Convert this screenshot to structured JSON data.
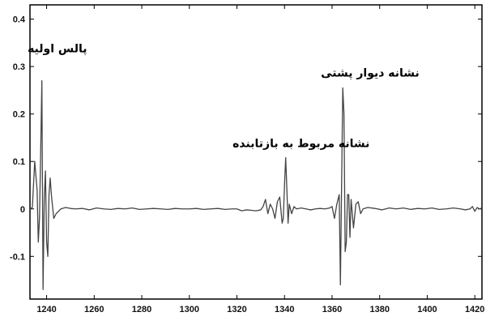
{
  "chart_data": {
    "type": "line",
    "title": "",
    "xlabel": "",
    "ylabel": "",
    "xlim": [
      1233,
      1423
    ],
    "ylim": [
      -0.19,
      0.43
    ],
    "x_ticks": [
      1240,
      1260,
      1280,
      1300,
      1320,
      1340,
      1360,
      1380,
      1400,
      1420
    ],
    "y_ticks": [
      0.4,
      0.3,
      0.2,
      0.1,
      0,
      -0.1
    ],
    "y_tick_labels": [
      "0.4",
      "0.3",
      "0.2",
      "0.1",
      "0",
      "-0.1"
    ],
    "grid": false,
    "line_color": "#444444",
    "series": [
      {
        "x": [
          1233.0,
          1234.0,
          1235.0,
          1236.0,
          1236.5,
          1237.0,
          1237.5,
          1238.0,
          1238.5,
          1239.0,
          1239.5,
          1240.0,
          1240.5,
          1241.0,
          1241.5,
          1242.0,
          1243.0,
          1244.0,
          1245.0,
          1246.0,
          1248.0,
          1250.0,
          1252.0,
          1255.0,
          1258.0,
          1261.0,
          1264.0,
          1267.0,
          1270.0,
          1273.0,
          1276.0,
          1279.0,
          1282.0,
          1285.0,
          1288.0,
          1291.0,
          1294.0,
          1297.0,
          1300.0,
          1303.0,
          1306.0,
          1309.0,
          1312.0,
          1315.0,
          1318.0,
          1320.0,
          1322.0,
          1324.0,
          1326.0,
          1328.0,
          1330.0,
          1331.0,
          1332.0,
          1333.0,
          1334.0,
          1335.0,
          1336.0,
          1337.0,
          1338.0,
          1339.0,
          1339.5,
          1340.0,
          1340.5,
          1341.0,
          1341.5,
          1342.0,
          1343.0,
          1344.0,
          1345.0,
          1347.0,
          1349.0,
          1351.0,
          1353.0,
          1355.0,
          1357.0,
          1359.0,
          1360.0,
          1361.0,
          1362.0,
          1363.0,
          1363.5,
          1364.0,
          1364.5,
          1365.0,
          1365.5,
          1366.0,
          1366.5,
          1367.0,
          1367.5,
          1368.0,
          1369.0,
          1370.0,
          1371.0,
          1372.0,
          1373.0,
          1375.0,
          1378.0,
          1381.0,
          1384.0,
          1387.0,
          1390.0,
          1393.0,
          1396.0,
          1399.0,
          1402.0,
          1405.0,
          1408.0,
          1411.0,
          1414.0,
          1416.0,
          1418.0,
          1419.0,
          1420.0,
          1421.0,
          1422.0,
          1423.0
        ],
        "y": [
          0.0,
          0.003,
          0.1,
          0.04,
          -0.07,
          -0.02,
          0.12,
          0.27,
          -0.17,
          0.02,
          0.08,
          -0.07,
          -0.1,
          0.03,
          0.065,
          0.03,
          -0.02,
          -0.01,
          -0.005,
          0.0,
          0.003,
          0.001,
          0.0,
          0.001,
          -0.002,
          0.002,
          0.0,
          -0.001,
          0.001,
          0.0,
          0.002,
          -0.001,
          0.0,
          0.001,
          0.0,
          -0.001,
          0.001,
          0.0,
          0.0,
          0.001,
          -0.001,
          0.0,
          0.001,
          -0.001,
          0.0,
          0.0,
          -0.004,
          -0.002,
          -0.003,
          -0.004,
          -0.002,
          0.005,
          0.02,
          -0.01,
          0.01,
          0.0,
          -0.02,
          0.015,
          0.025,
          -0.03,
          -0.02,
          0.05,
          0.108,
          0.04,
          -0.03,
          0.01,
          -0.01,
          0.005,
          0.0,
          0.002,
          0.0,
          -0.002,
          0.0,
          0.001,
          0.0,
          0.002,
          0.005,
          -0.02,
          0.01,
          0.03,
          -0.16,
          0.05,
          0.255,
          0.2,
          -0.09,
          -0.07,
          0.03,
          0.03,
          -0.06,
          0.02,
          -0.04,
          0.01,
          0.015,
          -0.01,
          0.0,
          0.003,
          0.001,
          -0.002,
          0.002,
          0.0,
          0.002,
          -0.001,
          0.001,
          0.0,
          0.002,
          -0.001,
          0.0,
          0.002,
          0.0,
          -0.002,
          0.0,
          0.005,
          -0.005,
          0.003,
          0.0,
          0.002
        ]
      }
    ],
    "annotations": [
      {
        "text": "پالس اولیه",
        "x": 1244.5,
        "y": 0.33
      },
      {
        "text": "نشانه مربوط به بازتابنده",
        "x": 1347,
        "y": 0.13
      },
      {
        "text": "نشانه دیوار پشتی",
        "x": 1376,
        "y": 0.279
      }
    ]
  }
}
